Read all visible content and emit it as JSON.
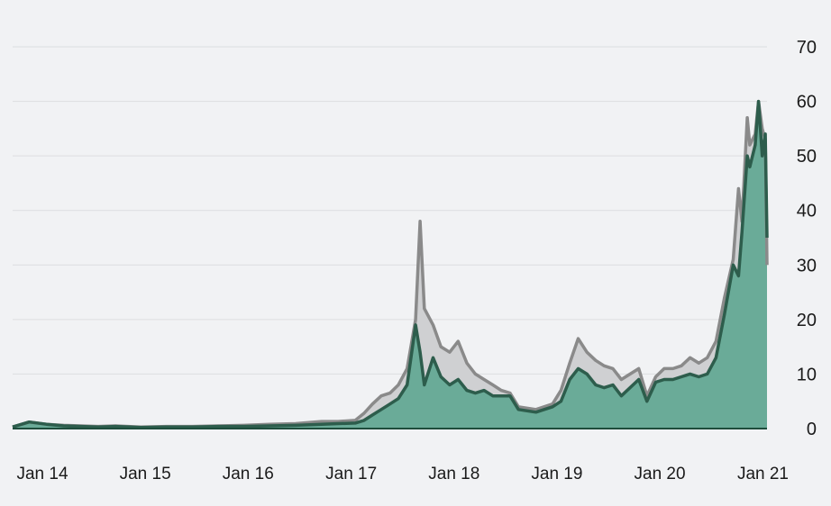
{
  "chart_data": {
    "type": "area",
    "x_ticks": [
      "Jan 14",
      "Jan 15",
      "Jan 16",
      "Jan 17",
      "Jan 18",
      "Jan 19",
      "Jan 20",
      "Jan 21"
    ],
    "y_ticks": [
      "0",
      "10",
      "20",
      "30",
      "40",
      "50",
      "60",
      "70"
    ],
    "ylim": [
      0,
      70
    ],
    "xlim": [
      "2014-01",
      "2021-05"
    ],
    "grid": true,
    "legend": "none",
    "colors": {
      "gray_line": "#8a8a8a",
      "gray_fill": "#cfd0d2",
      "green_line": "#2d5d4c",
      "green_fill": "#6aab98",
      "background": "#f1f2f4",
      "grid": "#dcdde0"
    },
    "series": [
      {
        "x": [
          "2014-01",
          "2014-03",
          "2014-05",
          "2014-07",
          "2014-09",
          "2014-11",
          "2015-01",
          "2015-04",
          "2015-07",
          "2015-10",
          "2016-01",
          "2016-04",
          "2016-07",
          "2016-10",
          "2017-01",
          "2017-03",
          "2017-05",
          "2017-06",
          "2017-07",
          "2017-08",
          "2017-09",
          "2017-10",
          "2017-11",
          "2017-12",
          "2017-12-17",
          "2018-01",
          "2018-02",
          "2018-03",
          "2018-04",
          "2018-05",
          "2018-06",
          "2018-07",
          "2018-08",
          "2018-09",
          "2018-10",
          "2018-11",
          "2018-12",
          "2019-02",
          "2019-04",
          "2019-05",
          "2019-06",
          "2019-07",
          "2019-08",
          "2019-09",
          "2019-10",
          "2019-11",
          "2019-12",
          "2020-02",
          "2020-03",
          "2020-04",
          "2020-05",
          "2020-06",
          "2020-07",
          "2020-08",
          "2020-09",
          "2020-10",
          "2020-11",
          "2020-12",
          "2021-01",
          "2021-01-20",
          "2021-02",
          "2021-02-20",
          "2021-03",
          "2021-03-20",
          "2021-04",
          "2021-04-14",
          "2021-04-25",
          "2021-05"
        ],
        "values": [
          0.3,
          1.2,
          0.8,
          0.6,
          0.5,
          0.4,
          0.5,
          0.3,
          0.4,
          0.4,
          0.5,
          0.6,
          0.8,
          0.9,
          1.3,
          1.3,
          1.5,
          2.8,
          4.5,
          6.0,
          6.5,
          8.0,
          11.0,
          20.0,
          38.0,
          22.0,
          19.0,
          15.0,
          14.0,
          16.0,
          12.0,
          10.0,
          9.0,
          8.0,
          7.0,
          6.5,
          4.0,
          3.5,
          4.5,
          7.0,
          12.0,
          16.5,
          14.0,
          12.5,
          11.5,
          11.0,
          9.0,
          11.0,
          6.0,
          9.5,
          11.0,
          11.0,
          11.5,
          13.0,
          12.0,
          13.0,
          16.0,
          24.0,
          31.0,
          44.0,
          38.0,
          57.0,
          52.0,
          54.0,
          60.0,
          55.0,
          53.0,
          30.0
        ]
      },
      {
        "x": [
          "2014-01",
          "2014-03",
          "2014-05",
          "2014-07",
          "2014-09",
          "2014-11",
          "2015-01",
          "2015-04",
          "2015-07",
          "2015-10",
          "2016-01",
          "2016-04",
          "2016-07",
          "2016-10",
          "2017-01",
          "2017-03",
          "2017-05",
          "2017-06",
          "2017-07",
          "2017-08",
          "2017-09",
          "2017-10",
          "2017-11",
          "2017-12",
          "2017-12-17",
          "2018-01",
          "2018-02",
          "2018-03",
          "2018-04",
          "2018-05",
          "2018-06",
          "2018-07",
          "2018-08",
          "2018-09",
          "2018-10",
          "2018-11",
          "2018-12",
          "2019-02",
          "2019-04",
          "2019-05",
          "2019-06",
          "2019-07",
          "2019-08",
          "2019-09",
          "2019-10",
          "2019-11",
          "2019-12",
          "2020-02",
          "2020-03",
          "2020-04",
          "2020-05",
          "2020-06",
          "2020-07",
          "2020-08",
          "2020-09",
          "2020-10",
          "2020-11",
          "2020-12",
          "2021-01",
          "2021-01-20",
          "2021-02",
          "2021-02-20",
          "2021-03",
          "2021-03-20",
          "2021-04",
          "2021-04-14",
          "2021-04-25",
          "2021-05"
        ],
        "values": [
          0.3,
          1.2,
          0.8,
          0.5,
          0.4,
          0.3,
          0.4,
          0.2,
          0.3,
          0.3,
          0.4,
          0.4,
          0.5,
          0.6,
          0.8,
          0.9,
          1.0,
          1.5,
          2.5,
          3.5,
          4.5,
          5.5,
          8.0,
          19.0,
          14.0,
          8.0,
          13.0,
          9.5,
          8.0,
          9.0,
          7.0,
          6.5,
          7.0,
          6.0,
          6.0,
          6.0,
          3.5,
          3.0,
          4.0,
          5.0,
          9.0,
          11.0,
          10.0,
          8.0,
          7.5,
          8.0,
          6.0,
          9.0,
          5.0,
          8.5,
          9.0,
          9.0,
          9.5,
          10.0,
          9.5,
          10.0,
          13.0,
          21.0,
          30.0,
          28.0,
          36.0,
          50.0,
          48.0,
          52.0,
          60.0,
          50.0,
          54.0,
          35.0
        ]
      }
    ]
  }
}
